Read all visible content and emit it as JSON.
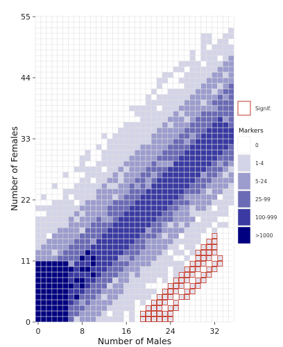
{
  "chart_data": {
    "type": "heatmap",
    "xlabel": "Number of Males",
    "ylabel": "Number of Females",
    "xlim": [
      0,
      37
    ],
    "ylim": [
      0,
      56
    ],
    "x_ticks": [
      "0",
      "8",
      "16",
      "24",
      "32"
    ],
    "y_ticks": [
      "0",
      "11",
      "22",
      "33",
      "44",
      "55"
    ],
    "grid": true,
    "legend": {
      "position": "right",
      "signif_label": "Signif.",
      "title": "Markers",
      "bins": [
        "0",
        "1-4",
        "5-24",
        "25-99",
        "100-999",
        ">1000"
      ],
      "colors": [
        "#ffffff",
        "#d4d4e8",
        "#9c9ccd",
        "#6a6ab5",
        "#3a3aa2",
        "#000080"
      ]
    },
    "signif_color": "#c0392b",
    "cell_rule": "Each cell (males, females) is coloured by its marker-count bin; cells outlined in red are significant.",
    "significant_cells": [
      [
        32,
        15
      ],
      [
        31,
        14
      ],
      [
        32,
        14
      ],
      [
        30,
        13
      ],
      [
        31,
        13
      ],
      [
        32,
        13
      ],
      [
        29,
        12
      ],
      [
        30,
        12
      ],
      [
        31,
        12
      ],
      [
        32,
        12
      ],
      [
        29,
        11
      ],
      [
        30,
        11
      ],
      [
        31,
        11
      ],
      [
        33,
        11
      ],
      [
        28,
        10
      ],
      [
        29,
        10
      ],
      [
        30,
        10
      ],
      [
        32,
        10
      ],
      [
        33,
        10
      ],
      [
        27,
        9
      ],
      [
        28,
        9
      ],
      [
        29,
        9
      ],
      [
        31,
        9
      ],
      [
        32,
        9
      ],
      [
        26,
        8
      ],
      [
        27,
        8
      ],
      [
        28,
        8
      ],
      [
        30,
        8
      ],
      [
        31,
        8
      ],
      [
        25,
        7
      ],
      [
        26,
        7
      ],
      [
        27,
        7
      ],
      [
        29,
        7
      ],
      [
        30,
        7
      ],
      [
        24,
        6
      ],
      [
        25,
        6
      ],
      [
        26,
        6
      ],
      [
        28,
        6
      ],
      [
        29,
        6
      ],
      [
        23,
        5
      ],
      [
        24,
        5
      ],
      [
        25,
        5
      ],
      [
        27,
        5
      ],
      [
        28,
        5
      ],
      [
        22,
        4
      ],
      [
        23,
        4
      ],
      [
        24,
        4
      ],
      [
        26,
        4
      ],
      [
        27,
        4
      ],
      [
        21,
        3
      ],
      [
        22,
        3
      ],
      [
        23,
        3
      ],
      [
        25,
        3
      ],
      [
        20,
        2
      ],
      [
        21,
        2
      ],
      [
        22,
        2
      ],
      [
        24,
        2
      ],
      [
        25,
        2
      ],
      [
        19,
        1
      ],
      [
        20,
        1
      ],
      [
        21,
        1
      ],
      [
        22,
        1
      ],
      [
        23,
        1
      ],
      [
        24,
        1
      ],
      [
        19,
        0
      ],
      [
        20,
        0
      ],
      [
        21,
        0
      ],
      [
        22,
        0
      ],
      [
        23,
        0
      ],
      [
        24,
        0
      ]
    ]
  }
}
